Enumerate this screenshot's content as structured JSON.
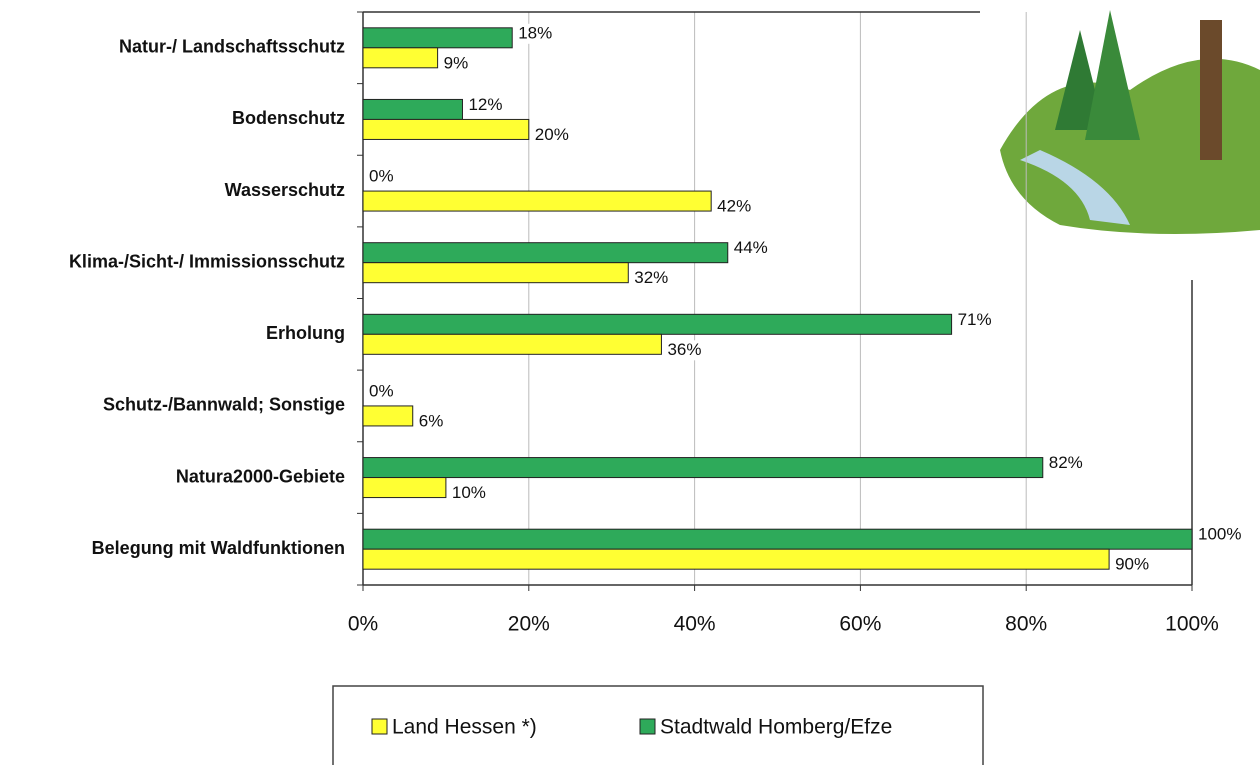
{
  "chart_data": {
    "type": "bar",
    "orientation": "horizontal",
    "categories": [
      "Natur-/ Landschaftsschutz",
      "Bodenschutz",
      "Wasserschutz",
      "Klima-/Sicht-/ Immissionsschutz",
      "Erholung",
      "Schutz-/Bannwald; Sonstige",
      "Natura2000-Gebiete",
      "Belegung mit Waldfunktionen"
    ],
    "series": [
      {
        "name": "Land Hessen *)",
        "color": "#ffff33",
        "values": [
          9,
          20,
          42,
          32,
          36,
          6,
          10,
          90
        ],
        "value_labels": [
          "9%",
          "20%",
          "42%",
          "32%",
          "36%",
          "6%",
          "10%",
          "90%"
        ]
      },
      {
        "name": "Stadtwald Homberg/Efze",
        "color": "#2eaa5a",
        "values": [
          18,
          12,
          0,
          44,
          71,
          0,
          82,
          100
        ],
        "value_labels": [
          "18%",
          "12%",
          "0%",
          "44%",
          "71%",
          "0%",
          "82%",
          "100%"
        ]
      }
    ],
    "xlim": [
      0,
      100
    ],
    "xticks": [
      {
        "value": 0,
        "label": "0%"
      },
      {
        "value": 20,
        "label": "20%"
      },
      {
        "value": 40,
        "label": "40%"
      },
      {
        "value": 60,
        "label": "60%"
      },
      {
        "value": 80,
        "label": "80%"
      },
      {
        "value": 100,
        "label": "100%"
      }
    ],
    "grid": true
  }
}
